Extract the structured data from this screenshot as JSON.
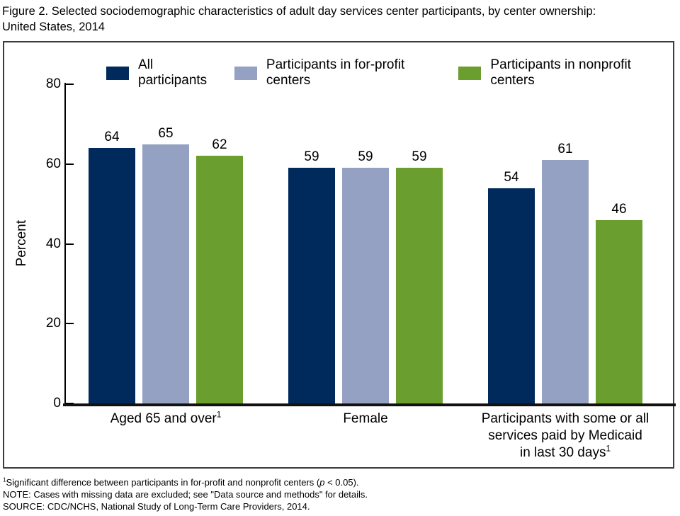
{
  "title": {
    "line1": "Figure 2. Selected sociodemographic characteristics of adult day services center participants, by center ownership:",
    "line2": "United States, 2014"
  },
  "chart_data": {
    "type": "bar",
    "title": "Figure 2. Selected sociodemographic characteristics of adult day services center participants, by center ownership: United States, 2014",
    "xlabel": "",
    "ylabel": "Percent",
    "ylim": [
      0,
      80
    ],
    "yticks": [
      0,
      20,
      40,
      60,
      80
    ],
    "grid": false,
    "legend_position": "top",
    "categories": [
      {
        "lines": [
          "Aged 65 and over"
        ],
        "sup": "1"
      },
      {
        "lines": [
          "Female"
        ],
        "sup": ""
      },
      {
        "lines": [
          "Participants with some or all",
          "services paid by Medicaid",
          "in last 30 days"
        ],
        "sup": "1"
      }
    ],
    "series": [
      {
        "name": "All participants",
        "color": "#002a5c",
        "values": [
          64,
          59,
          54
        ]
      },
      {
        "name": "Participants in for-profit centers",
        "color": "#94a1c3",
        "values": [
          65,
          59,
          61
        ]
      },
      {
        "name": "Participants in nonprofit centers",
        "color": "#6a9f2f",
        "values": [
          62,
          59,
          46
        ]
      }
    ]
  },
  "footnotes": {
    "significance": {
      "sup": "1",
      "pre": "Significant difference between participants in for-profit and nonprofit centers (",
      "italic": "p",
      "post": " < 0.05)."
    },
    "note": "NOTE: Cases with missing data are excluded; see \"Data source and methods\" for details.",
    "source": "SOURCE: CDC/NCHS, National Study of Long-Term Care Providers, 2014."
  }
}
